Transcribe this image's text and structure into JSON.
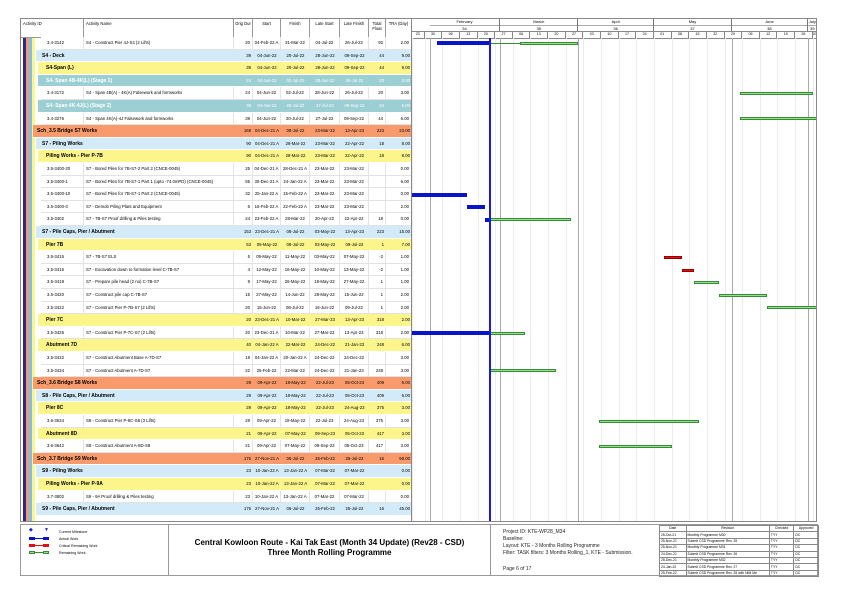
{
  "columns": {
    "id": "Activity ID",
    "name": "Activity Name",
    "od": "Orig Dur",
    "start": "Start",
    "finish": "Finish",
    "ls": "Late Start",
    "lf": "Late Finish",
    "tf": "Total Float",
    "tra": "TRA (Day)"
  },
  "colors": {
    "level1": "#f99a6d",
    "level2": "#d3ebf8",
    "level3": "#fcf58b",
    "stage": "#9bcfd3",
    "actual": "#0a14c8",
    "remaining": "#8fe38a",
    "critical": "#e01010",
    "data_date_line": "#1a1ae6"
  },
  "data_date": "2022-02-25",
  "timescale": {
    "start": "2022-01-23",
    "end": "2022-07-05",
    "months": [
      {
        "label": "February",
        "num": "34",
        "date": "2022-02-01"
      },
      {
        "label": "March",
        "num": "35",
        "date": "2022-03-01"
      },
      {
        "label": "April",
        "num": "36",
        "date": "2022-04-01"
      },
      {
        "label": "May",
        "num": "37",
        "date": "2022-05-01"
      },
      {
        "label": "June",
        "num": "38",
        "date": "2022-06-01"
      },
      {
        "label": "July",
        "num": "39",
        "date": "2022-07-01"
      }
    ],
    "weeks": [
      "23",
      "30",
      "06",
      "13",
      "20",
      "27",
      "06",
      "13",
      "20",
      "27",
      "03",
      "10",
      "17",
      "24",
      "01",
      "08",
      "15",
      "22",
      "29",
      "05",
      "12",
      "19",
      "26",
      "03"
    ]
  },
  "rows": [
    {
      "type": "task",
      "id": "3.4-3142",
      "name": "S4 - Construct Pier 4J-S4 (2 Lifts)",
      "od": "20",
      "start": "04-Feb-22 A",
      "finish": "31-Mar-22",
      "ls": "04-Jul-22",
      "lf": "26-Jul-22",
      "tf": "92",
      "tra": "2.00",
      "remaining_start": "09-Mar-22"
    },
    {
      "type": "l2",
      "id": "",
      "name": "S4 - Deck",
      "od": "39",
      "start": "04-Jun-22",
      "finish": "20-Jul-22",
      "ls": "28-Jun-22",
      "lf": "09-Sep-22",
      "tf": "44",
      "tra": "9.00"
    },
    {
      "type": "l3",
      "id": "",
      "name": "S4-Span (L)",
      "od": "39",
      "start": "04-Jun-22",
      "finish": "20-Jul-22",
      "ls": "28-Jun-22",
      "lf": "09-Sep-22",
      "tf": "44",
      "tra": "9.00"
    },
    {
      "type": "stage",
      "id": "",
      "name": "S4- Span 4B-4K(L) (Stage 1)",
      "od": "24",
      "start": "04-Jun-22",
      "finish": "02-Jul-22",
      "ls": "28-Jun-22",
      "lf": "26-Jul-22",
      "tf": "20",
      "tra": "3.00"
    },
    {
      "type": "task",
      "id": "3.4-3172",
      "name": "S4 - Span 4B(A) - 4K(A) Falsework and formworks",
      "od": "24",
      "start": "04-Jun-22",
      "finish": "02-Jul-22",
      "ls": "28-Jun-22",
      "lf": "26-Jul-22",
      "tf": "20",
      "tra": "3.00"
    },
    {
      "type": "stage",
      "id": "",
      "name": "S4- Span 4K-4J(L) (Stage 2)",
      "od": "39",
      "start": "04-Jun-22",
      "finish": "20-Jul-22",
      "ls": "27-Jul-22",
      "lf": "09-Sep-22",
      "tf": "44",
      "tra": "6.00"
    },
    {
      "type": "task",
      "id": "3.4-3276",
      "name": "S4 - Span 4K(A)-4J Falsework and formworks",
      "od": "39",
      "start": "04-Jun-22",
      "finish": "20-Jul-22",
      "ls": "27-Jul-22",
      "lf": "09-Sep-22",
      "tf": "44",
      "tra": "6.00"
    },
    {
      "type": "l1",
      "id": "",
      "name": "Sch_3.5 Bridge S7 Works",
      "od": "169",
      "start": "04-Dec-21 A",
      "finish": "08-Jul-22",
      "ls": "23-Mar-22",
      "lf": "13-Apr-23",
      "tf": "223",
      "tra": "23.00"
    },
    {
      "type": "l2",
      "id": "",
      "name": "S7 - Piling Works",
      "od": "90",
      "start": "04-Dec-21 A",
      "finish": "28-Mar-22",
      "ls": "23-Mar-22",
      "lf": "22-Apr-22",
      "tf": "18",
      "tra": "8.00"
    },
    {
      "type": "l3",
      "id": "",
      "name": "Piling Works - Pier P-7B",
      "od": "90",
      "start": "04-Dec-21 A",
      "finish": "28-Mar-22",
      "ls": "23-Mar-22",
      "lf": "22-Apr-22",
      "tf": "18",
      "tra": "8.00"
    },
    {
      "type": "task",
      "id": "3.5-3400-20",
      "name": "S7 - Bored Piles for 7B-S7-2 Part 2 (CNCE-0045)",
      "od": "25",
      "start": "04-Dec-21 A",
      "finish": "28-Dec-21 A",
      "ls": "23-Mar-22",
      "lf": "23-Mar-22",
      "tf": "",
      "tra": "0.00"
    },
    {
      "type": "task",
      "id": "3.5-3400-1",
      "name": "S7 - Bored Piles for 7B-S7-1 Part 1 (upto -74.0mPD) (CNCE-0045)",
      "od": "55",
      "start": "30-Dec-21 A",
      "finish": "24-Jan-22 A",
      "ls": "23-Mar-22",
      "lf": "23-Mar-22",
      "tf": "",
      "tra": "6.00"
    },
    {
      "type": "task",
      "id": "3.5-3400-10",
      "name": "S7 - Bored Piles for 7B-S7-1 Part 2 (CNCE-0045)",
      "od": "32",
      "start": "25-Jan-22 A",
      "finish": "15-Feb-22 A",
      "ls": "23-Mar-22",
      "lf": "23-Mar-22",
      "tf": "",
      "tra": "0.00"
    },
    {
      "type": "task",
      "id": "3.5-3400-3",
      "name": "S7 - Demob Piling Plant and Equipment",
      "od": "6",
      "start": "16-Feb-22 A",
      "finish": "22-Feb-22 A",
      "ls": "23-Mar-22",
      "lf": "23-Mar-22",
      "tf": "",
      "tra": "2.00"
    },
    {
      "type": "task",
      "id": "3.5-3402",
      "name": "S7 - 7B-S7 Proof drilling & Piles testing",
      "od": "24",
      "start": "23-Feb-22 A",
      "finish": "28-Mar-22",
      "ls": "20-Apr-22",
      "lf": "22-Apr-22",
      "tf": "18",
      "tra": "0.00"
    },
    {
      "type": "l2",
      "id": "",
      "name": "S7 - Pile Caps, Pier / Abutment",
      "od": "153",
      "start": "23-Dec-21 A",
      "finish": "08-Jul-22",
      "ls": "03-May-22",
      "lf": "13-Apr-23",
      "tf": "223",
      "tra": "15.00"
    },
    {
      "type": "l3",
      "id": "",
      "name": "Pier 7B",
      "od": "53",
      "start": "05-May-22",
      "finish": "08-Jul-22",
      "ls": "03-May-22",
      "lf": "09-Jul-22",
      "tf": "1",
      "tra": "7.00"
    },
    {
      "type": "task",
      "id": "3.5-3415",
      "name": "S7 - 7B-S7 ELS",
      "od": "5",
      "start": "05-May-22",
      "finish": "11-May-22",
      "ls": "03-May-22",
      "lf": "07-May-22",
      "tf": "-2",
      "tra": "1.00"
    },
    {
      "type": "task",
      "id": "3.5-3416",
      "name": "S7 - Excavation down to formation level C-7B-S7",
      "od": "4",
      "start": "12-May-22",
      "finish": "16-May-22",
      "ls": "10-May-22",
      "lf": "13-May-22",
      "tf": "-2",
      "tra": "1.00"
    },
    {
      "type": "task",
      "id": "3.5-3418",
      "name": "S7 - Prepare pile head (2 no) C-7B-S7",
      "od": "9",
      "start": "17-May-22",
      "finish": "26-May-22",
      "ls": "18-May-22",
      "lf": "27-May-22",
      "tf": "1",
      "tra": "1.00"
    },
    {
      "type": "task",
      "id": "3.5-3420",
      "name": "S7 - Construct pile cap C-7B-S7",
      "od": "15",
      "start": "27-May-22",
      "finish": "14-Jun-22",
      "ls": "28-May-22",
      "lf": "15-Jun-22",
      "tf": "1",
      "tra": "2.00"
    },
    {
      "type": "task",
      "id": "3.5-3422",
      "name": "S7 - Construct Pier P-7B-S7 (2 Lifts)",
      "od": "20",
      "start": "15-Jun-22",
      "finish": "08-Jul-22",
      "ls": "16-Jun-22",
      "lf": "09-Jul-22",
      "tf": "1",
      "tra": "2.00"
    },
    {
      "type": "l3",
      "id": "",
      "name": "Pier 7C",
      "od": "20",
      "start": "23-Dec-21 A",
      "finish": "10-Mar-22",
      "ls": "27-Mar-23",
      "lf": "13-Apr-23",
      "tf": "318",
      "tra": "2.00"
    },
    {
      "type": "task",
      "id": "3.5-3426",
      "name": "S7 - Construct Pier P-7C-S7 (2 Lifts)",
      "od": "20",
      "start": "23-Dec-21 A",
      "finish": "10-Mar-22",
      "ls": "27-Mar-23",
      "lf": "13-Apr-23",
      "tf": "318",
      "tra": "2.00"
    },
    {
      "type": "l3",
      "id": "",
      "name": "Abutment 7D",
      "od": "40",
      "start": "04-Jan-22 A",
      "finish": "22-Mar-22",
      "ls": "24-Dec-22",
      "lf": "21-Jan-23",
      "tf": "248",
      "tra": "6.00"
    },
    {
      "type": "task",
      "id": "3.5-3432",
      "name": "S7 - Construct Abutment Base A-7D-S7",
      "od": "19",
      "start": "04-Jan-22 A",
      "finish": "20-Jan-22 A",
      "ls": "24-Dec-22",
      "lf": "24-Dec-22",
      "tf": "",
      "tra": "3.00"
    },
    {
      "type": "task",
      "id": "3.5-3434",
      "name": "S7 - Construct Abutment A-7D-S7",
      "od": "22",
      "start": "25-Feb-22",
      "finish": "22-Mar-22",
      "ls": "24-Dec-22",
      "lf": "21-Jan-23",
      "tf": "248",
      "tra": "3.00"
    },
    {
      "type": "l1",
      "id": "",
      "name": "Sch_3.6 Bridge S8 Works",
      "od": "29",
      "start": "09-Apr-22",
      "finish": "18-May-22",
      "ls": "22-Jul-23",
      "lf": "05-Oct-23",
      "tf": "409",
      "tra": "6.00"
    },
    {
      "type": "l2",
      "id": "",
      "name": "S8 - Pile Caps, Pier / Abutment",
      "od": "29",
      "start": "09-Apr-22",
      "finish": "18-May-22",
      "ls": "22-Jul-23",
      "lf": "05-Oct-23",
      "tf": "409",
      "tra": "6.00"
    },
    {
      "type": "l3",
      "id": "",
      "name": "Pier 8C",
      "od": "29",
      "start": "09-Apr-22",
      "finish": "18-May-22",
      "ls": "22-Jul-23",
      "lf": "24-Aug-23",
      "tf": "375",
      "tra": "3.00"
    },
    {
      "type": "task",
      "id": "3.6-3634",
      "name": "S8 - Construct Pier P-8C-S8 (3 Lifts)",
      "od": "29",
      "start": "09-Apr-22",
      "finish": "18-May-22",
      "ls": "22-Jul-23",
      "lf": "24-Aug-23",
      "tf": "375",
      "tra": "3.00"
    },
    {
      "type": "l3",
      "id": "",
      "name": "Abutment 8D",
      "od": "21",
      "start": "09-Apr-22",
      "finish": "07-May-22",
      "ls": "09-Sep-23",
      "lf": "05-Oct-23",
      "tf": "417",
      "tra": "3.00"
    },
    {
      "type": "task",
      "id": "3.6-3642",
      "name": "S8 - Construct Abutment A-8D-S8",
      "od": "21",
      "start": "09-Apr-22",
      "finish": "07-May-22",
      "ls": "09-Sep-23",
      "lf": "05-Oct-23",
      "tf": "417",
      "tra": "3.00"
    },
    {
      "type": "l1",
      "id": "",
      "name": "Sch_3.7 Bridge S9 Works",
      "od": "175",
      "start": "27-Nov-21 A",
      "finish": "06-Jul-22",
      "ls": "25-Feb-22",
      "lf": "25-Jul-22",
      "tf": "16",
      "tra": "59.00"
    },
    {
      "type": "l2",
      "id": "",
      "name": "S9 - Piling Works",
      "od": "23",
      "start": "10-Jan-22 A",
      "finish": "13-Jan-22 A",
      "ls": "07-Mar-22",
      "lf": "07-Mar-22",
      "tf": "",
      "tra": "0.00"
    },
    {
      "type": "l3",
      "id": "",
      "name": "Piling Works - Pier P-9A",
      "od": "23",
      "start": "10-Jan-22 A",
      "finish": "13-Jan-22 A",
      "ls": "07-Mar-22",
      "lf": "07-Mar-22",
      "tf": "",
      "tra": "0.00"
    },
    {
      "type": "task",
      "id": "3.7-3802",
      "name": "S9 - 9A Proof drilling & Piles testing",
      "od": "23",
      "start": "10-Jan-22 A",
      "finish": "13-Jan-22 A",
      "ls": "07-Mar-22",
      "lf": "07-Mar-22",
      "tf": "",
      "tra": "0.00"
    },
    {
      "type": "l2",
      "id": "",
      "name": "S9 - Pile Caps, Pier / Abutment",
      "od": "175",
      "start": "27-Nov-21 A",
      "finish": "06-Jul-22",
      "ls": "25-Feb-22",
      "lf": "25-Jul-22",
      "tf": "16",
      "tra": "45.00"
    }
  ],
  "legend": {
    "milestone": "Current Milestone",
    "actual": "Actual Work",
    "critical": "Critical Remaining Work",
    "remaining": "Remaining Work"
  },
  "footer": {
    "title": "Central Kowloon Route - Kai Tak East (Month 34 Update) (Rev28 - CSD)",
    "subtitle": "Three Month Rolling Programme",
    "project_id": "Project ID: KTE-WP28_M34",
    "baseline": "Baseline:",
    "layout": "Layout: KTE - 3 Months Rolling Programme",
    "filter": "Filter: TASK filters: 3 Months Rolling_1, KTE - Submission.",
    "page": "Page 6 of 17",
    "revision_headers": [
      "Date",
      "Revision",
      "Checked",
      "Approved"
    ],
    "revisions": [
      [
        "25-Oct-21",
        "Monthly Programme M30",
        "TYY",
        "DC"
      ],
      [
        "25-Nov-21",
        "Submit CSD Programme Rev. 25",
        "TYY",
        "DC"
      ],
      [
        "25-Nov-21",
        "Monthly Programme M31",
        "TYY",
        "DC"
      ],
      [
        "24-Dec-21",
        "Submit CSD Programme Rev. 26",
        "TYY",
        "DC"
      ],
      [
        "25-Dec-21",
        "Monthly Programme M32",
        "TYY",
        "DC"
      ],
      [
        "24-Jan-22",
        "Submit CSD Programme Rev. 27",
        "TYY",
        "DC"
      ],
      [
        "25-Feb-22",
        "Submit CSD Programme Rev. 28 with NtM Me",
        "TYY",
        "DC"
      ]
    ]
  }
}
